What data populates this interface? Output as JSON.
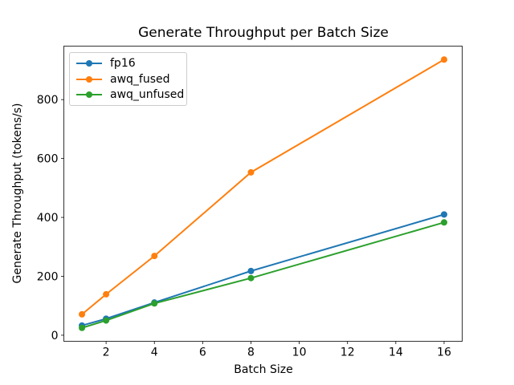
{
  "figure": {
    "background": "#ffffff",
    "text_color": "#000000",
    "spine_color": "#000000"
  },
  "chart_data": {
    "type": "line",
    "title": "Generate Throughput per Batch Size",
    "xlabel": "Batch Size",
    "ylabel": "Generate Throughput (tokens/s)",
    "x": [
      1,
      2,
      4,
      8,
      16
    ],
    "series": [
      {
        "name": "fp16",
        "color": "#1f77b4",
        "values": [
          33,
          56,
          111,
          218,
          410
        ]
      },
      {
        "name": "awq_fused",
        "color": "#ff7f0e",
        "values": [
          71,
          139,
          269,
          553,
          936
        ]
      },
      {
        "name": "awq_unfused",
        "color": "#2ca02c",
        "values": [
          25,
          50,
          108,
          194,
          383
        ]
      }
    ],
    "xticks": [
      2,
      4,
      6,
      8,
      10,
      12,
      14,
      16
    ],
    "yticks": [
      0,
      200,
      400,
      600,
      800
    ],
    "xlim": [
      0.25,
      16.75
    ],
    "ylim": [
      -20.6,
      981.6
    ],
    "grid": false,
    "legend_position": "upper-left",
    "marker": "circle",
    "line_width": 2,
    "marker_radius": 4
  }
}
